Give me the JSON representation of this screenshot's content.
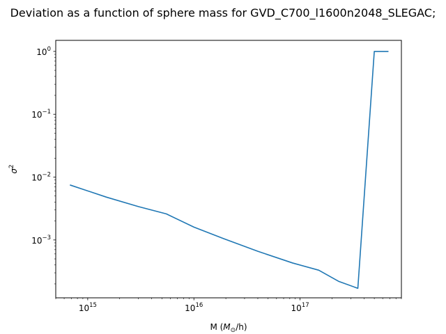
{
  "chart_data": {
    "type": "line",
    "title": "Deviation as a function of sphere mass for GVD_C700_l1600n2048_SLEGAC;",
    "xlabel_parts": {
      "prefix": "M (",
      "symbol": "M",
      "subscript": "⊙",
      "suffix": "/h)"
    },
    "ylabel_parts": {
      "symbol": "σ",
      "superscript": "2"
    },
    "xscale": "log",
    "yscale": "log",
    "xlim": [
      500000000000000.0,
      9e+17
    ],
    "ylim": [
      0.00012,
      1.5
    ],
    "grid": false,
    "x_ticks": [
      {
        "base": "10",
        "exp": "15"
      },
      {
        "base": "10",
        "exp": "16"
      },
      {
        "base": "10",
        "exp": "17"
      }
    ],
    "y_ticks": [
      {
        "base": "10",
        "exp": "−3"
      },
      {
        "base": "10",
        "exp": "−2"
      },
      {
        "base": "10",
        "exp": "−1"
      },
      {
        "base": "10",
        "exp": "0"
      }
    ],
    "series": [
      {
        "color": "#1f77b4",
        "x": [
          680000000000000.0,
          1500000000000000.0,
          3000000000000000.0,
          5500000000000000.0,
          1e+16,
          1.9e+16,
          4e+16,
          8.5e+16,
          1.5e+17,
          2.3e+17,
          3.5e+17,
          5e+17,
          6.8e+17
        ],
        "y": [
          0.0075,
          0.0048,
          0.0034,
          0.0026,
          0.0016,
          0.00105,
          0.00066,
          0.00043,
          0.00033,
          0.00022,
          0.00017,
          1.0,
          1.0
        ]
      }
    ]
  }
}
